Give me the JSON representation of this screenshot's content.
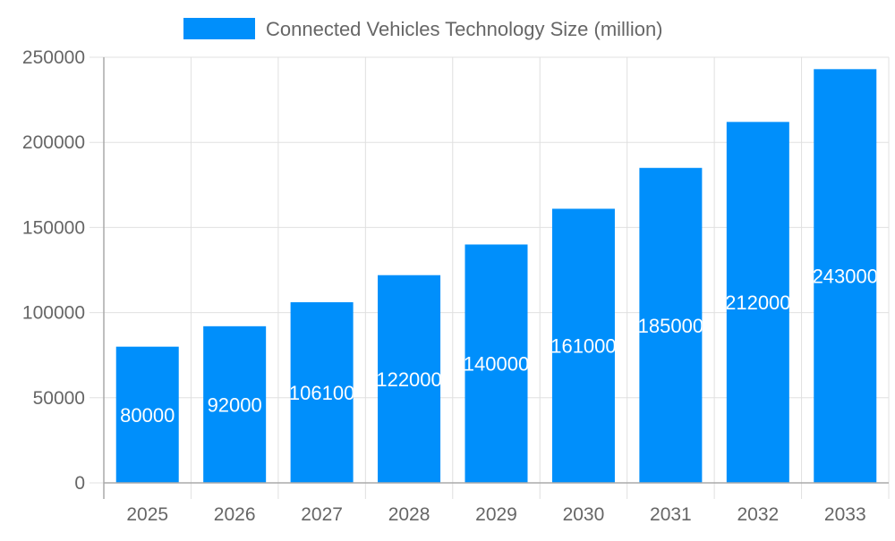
{
  "chart_data": {
    "type": "bar",
    "title": "",
    "xlabel": "",
    "ylabel": "",
    "categories": [
      "2025",
      "2026",
      "2027",
      "2028",
      "2029",
      "2030",
      "2031",
      "2032",
      "2033"
    ],
    "series": [
      {
        "name": "Connected Vehicles Technology Size (million)",
        "values": [
          80000,
          92000,
          106100,
          122000,
          140000,
          161000,
          185000,
          212000,
          243000
        ],
        "color": "#008ffb"
      }
    ],
    "ylim": [
      0,
      250000
    ],
    "yticks": [
      "0",
      "50000",
      "100000",
      "150000",
      "200000",
      "250000"
    ],
    "grid": true,
    "legend": "top",
    "data_labels": true,
    "data_label_color": "#ffffff"
  }
}
